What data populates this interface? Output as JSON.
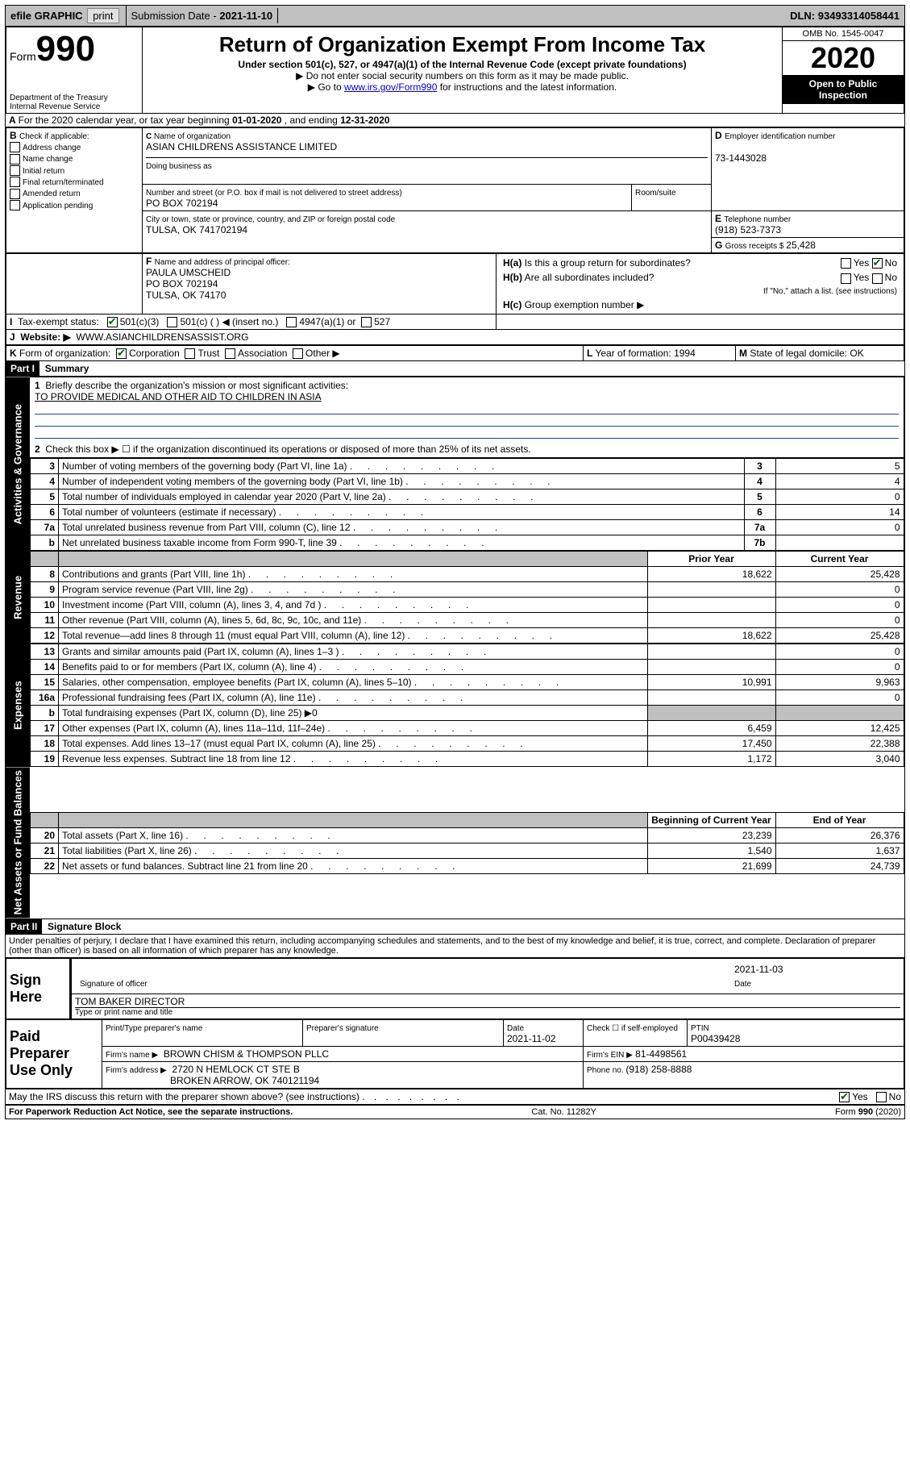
{
  "colors": {
    "link": "#0000cc",
    "check": "#006400",
    "blueline": "#2040a0"
  },
  "topbar": {
    "efile": "efile GRAPHIC",
    "print": "print",
    "submission_label": "Submission Date - ",
    "submission_date": "2021-11-10",
    "dln_label": "DLN: ",
    "dln": "93493314058441"
  },
  "header": {
    "form_word": "Form",
    "form_no": "990",
    "dept": "Department of the Treasury\nInternal Revenue Service",
    "title": "Return of Organization Exempt From Income Tax",
    "subtitle": "Under section 501(c), 527, or 4947(a)(1) of the Internal Revenue Code (except private foundations)",
    "instruct1": "▶ Do not enter social security numbers on this form as it may be made public.",
    "instruct2_pre": "▶ Go to ",
    "instruct2_link": "www.irs.gov/Form990",
    "instruct2_post": " for instructions and the latest information.",
    "omb": "OMB No. 1545-0047",
    "year": "2020",
    "inspection": "Open to Public Inspection"
  },
  "periodA": {
    "pre": "For the 2020 calendar year, or tax year beginning ",
    "begin": "01-01-2020",
    "mid": " , and ending ",
    "end": "12-31-2020"
  },
  "boxB": {
    "label": "Check if applicable:",
    "items": [
      "Address change",
      "Name change",
      "Initial return",
      "Final return/terminated",
      "Amended return",
      "Application pending"
    ]
  },
  "boxC": {
    "name_label": "Name of organization",
    "name": "ASIAN CHILDRENS ASSISTANCE LIMITED",
    "dba_label": "Doing business as",
    "dba": "",
    "street_label": "Number and street (or P.O. box if mail is not delivered to street address)",
    "street": "PO BOX 702194",
    "room_label": "Room/suite",
    "room": "",
    "city_label": "City or town, state or province, country, and ZIP or foreign postal code",
    "city": "TULSA, OK  741702194"
  },
  "boxD": {
    "label": "Employer identification number",
    "value": "73-1443028"
  },
  "boxE": {
    "label": "Telephone number",
    "value": "(918) 523-7373"
  },
  "boxG": {
    "label": "Gross receipts $ ",
    "value": "25,428"
  },
  "boxF": {
    "label": "Name and address of principal officer:",
    "lines": [
      "PAULA UMSCHEID",
      "PO BOX 702194",
      "TULSA, OK  74170"
    ]
  },
  "boxH": {
    "a": "Is this a group return for subordinates?",
    "b": "Are all subordinates included?",
    "b_note": "If \"No,\" attach a list. (see instructions)",
    "c": "Group exemption number ▶",
    "yes": "Yes",
    "no": "No"
  },
  "boxI": {
    "label": "Tax-exempt status:",
    "opts": [
      "501(c)(3)",
      "501(c) (  ) ◀ (insert no.)",
      "4947(a)(1) or",
      "527"
    ]
  },
  "boxJ": {
    "label": "Website: ▶",
    "value": "WWW.ASIANCHILDRENSASSIST.ORG"
  },
  "boxK": {
    "label": "Form of organization:",
    "opts": [
      "Corporation",
      "Trust",
      "Association",
      "Other ▶"
    ]
  },
  "boxL": {
    "label": "Year of formation: ",
    "value": "1994"
  },
  "boxM": {
    "label": "State of legal domicile: ",
    "value": "OK"
  },
  "part1": {
    "hdr": "Part I",
    "title": "Summary"
  },
  "summary": {
    "q1": "Briefly describe the organization's mission or most significant activities:",
    "mission": "TO PROVIDE MEDICAL AND OTHER AID TO CHILDREN IN ASIA",
    "q2": "Check this box ▶ ☐  if the organization discontinued its operations or disposed of more than 25% of its net assets."
  },
  "gov_lines": [
    {
      "n": "3",
      "d": "Number of voting members of the governing body (Part VI, line 1a)",
      "box": "3",
      "v": "5"
    },
    {
      "n": "4",
      "d": "Number of independent voting members of the governing body (Part VI, line 1b)",
      "box": "4",
      "v": "4"
    },
    {
      "n": "5",
      "d": "Total number of individuals employed in calendar year 2020 (Part V, line 2a)",
      "box": "5",
      "v": "0"
    },
    {
      "n": "6",
      "d": "Total number of volunteers (estimate if necessary)",
      "box": "6",
      "v": "14"
    },
    {
      "n": "7a",
      "d": "Total unrelated business revenue from Part VIII, column (C), line 12",
      "box": "7a",
      "v": "0"
    },
    {
      "n": "b",
      "d": "Net unrelated business taxable income from Form 990-T, line 39",
      "box": "7b",
      "v": ""
    }
  ],
  "col_hdr": {
    "prior": "Prior Year",
    "current": "Current Year",
    "begin": "Beginning of Current Year",
    "end": "End of Year"
  },
  "revenue": [
    {
      "n": "8",
      "d": "Contributions and grants (Part VIII, line 1h)",
      "p": "18,622",
      "c": "25,428"
    },
    {
      "n": "9",
      "d": "Program service revenue (Part VIII, line 2g)",
      "p": "",
      "c": "0"
    },
    {
      "n": "10",
      "d": "Investment income (Part VIII, column (A), lines 3, 4, and 7d )",
      "p": "",
      "c": "0"
    },
    {
      "n": "11",
      "d": "Other revenue (Part VIII, column (A), lines 5, 6d, 8c, 9c, 10c, and 11e)",
      "p": "",
      "c": "0"
    },
    {
      "n": "12",
      "d": "Total revenue—add lines 8 through 11 (must equal Part VIII, column (A), line 12)",
      "p": "18,622",
      "c": "25,428"
    }
  ],
  "expenses": [
    {
      "n": "13",
      "d": "Grants and similar amounts paid (Part IX, column (A), lines 1–3 )",
      "p": "",
      "c": "0"
    },
    {
      "n": "14",
      "d": "Benefits paid to or for members (Part IX, column (A), line 4)",
      "p": "",
      "c": "0"
    },
    {
      "n": "15",
      "d": "Salaries, other compensation, employee benefits (Part IX, column (A), lines 5–10)",
      "p": "10,991",
      "c": "9,963"
    },
    {
      "n": "16a",
      "d": "Professional fundraising fees (Part IX, column (A), line 11e)",
      "p": "",
      "c": "0"
    },
    {
      "n": "b",
      "d": "Total fundraising expenses (Part IX, column (D), line 25) ▶0",
      "shade": true
    },
    {
      "n": "17",
      "d": "Other expenses (Part IX, column (A), lines 11a–11d, 11f–24e)",
      "p": "6,459",
      "c": "12,425"
    },
    {
      "n": "18",
      "d": "Total expenses. Add lines 13–17 (must equal Part IX, column (A), line 25)",
      "p": "17,450",
      "c": "22,388"
    },
    {
      "n": "19",
      "d": "Revenue less expenses. Subtract line 18 from line 12",
      "p": "1,172",
      "c": "3,040"
    }
  ],
  "netassets": [
    {
      "n": "20",
      "d": "Total assets (Part X, line 16)",
      "p": "23,239",
      "c": "26,376"
    },
    {
      "n": "21",
      "d": "Total liabilities (Part X, line 26)",
      "p": "1,540",
      "c": "1,637"
    },
    {
      "n": "22",
      "d": "Net assets or fund balances. Subtract line 21 from line 20",
      "p": "21,699",
      "c": "24,739"
    }
  ],
  "vtabs": {
    "gov": "Activities & Governance",
    "rev": "Revenue",
    "exp": "Expenses",
    "net": "Net Assets or Fund Balances"
  },
  "part2": {
    "hdr": "Part II",
    "title": "Signature Block",
    "decl": "Under penalties of perjury, I declare that I have examined this return, including accompanying schedules and statements, and to the best of my knowledge and belief, it is true, correct, and complete. Declaration of preparer (other than officer) is based on all information of which preparer has any knowledge."
  },
  "sign": {
    "here": "Sign Here",
    "sig_label": "Signature of officer",
    "date_label": "Date",
    "date": "2021-11-03",
    "name": "TOM BAKER  DIRECTOR",
    "name_label": "Type or print name and title"
  },
  "preparer": {
    "hdr": "Paid Preparer Use Only",
    "print_label": "Print/Type preparer's name",
    "sig_label": "Preparer's signature",
    "date_label": "Date",
    "date": "2021-11-02",
    "check_label": "Check ☐ if self-employed",
    "ptin_label": "PTIN",
    "ptin": "P00439428",
    "firm_name_label": "Firm's name   ▶",
    "firm_name": "BROWN CHISM & THOMPSON PLLC",
    "firm_ein_label": "Firm's EIN ▶",
    "firm_ein": "81-4498561",
    "firm_addr_label": "Firm's address ▶",
    "firm_addr1": "2720 N HEMLOCK CT STE B",
    "firm_addr2": "BROKEN ARROW, OK  740121194",
    "phone_label": "Phone no. ",
    "phone": "(918) 258-8888"
  },
  "discuss": {
    "q": "May the IRS discuss this return with the preparer shown above? (see instructions)",
    "yes": "Yes",
    "no": "No"
  },
  "footer": {
    "left": "For Paperwork Reduction Act Notice, see the separate instructions.",
    "mid": "Cat. No. 11282Y",
    "right": "Form 990 (2020)"
  }
}
